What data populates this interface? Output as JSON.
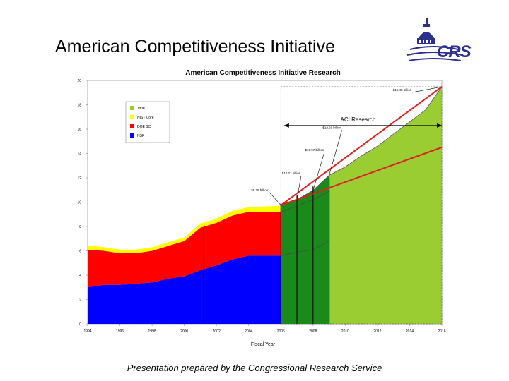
{
  "slide": {
    "title": "American Competitiveness Initiative",
    "footer": "Presentation prepared by the Congressional Research Service",
    "logo_text": "CRS"
  },
  "chart_data": {
    "type": "area",
    "title": "American Competitiveness Initiative Research",
    "xlabel": "Fiscal Year",
    "ylabel": "",
    "xlim": [
      1994,
      2016
    ],
    "ylim": [
      0,
      20
    ],
    "x_ticks": [
      1994,
      1996,
      1998,
      2000,
      2002,
      2004,
      2006,
      2008,
      2010,
      2012,
      2014,
      2016
    ],
    "x_tick_labels": [
      "1994",
      "1996",
      "1998",
      "2000",
      "2002",
      "2004",
      "2006",
      "2008",
      "2010",
      "2012",
      "2014",
      "2016"
    ],
    "y_ticks": [
      0,
      2,
      4,
      6,
      8,
      10,
      12,
      14,
      16,
      18,
      20
    ],
    "grid": false,
    "legend_position": "top-left",
    "legend": [
      {
        "label": "Total",
        "color": "#9acd32"
      },
      {
        "label": "NIST Core",
        "color": "#ffff00"
      },
      {
        "label": "DOE SC",
        "color": "#ff0000"
      },
      {
        "label": "NSF",
        "color": "#0000ff"
      }
    ],
    "series": [
      {
        "name": "NSF",
        "color": "#0000ff",
        "x": [
          1994,
          1995,
          1996,
          1997,
          1998,
          1999,
          2000,
          2001,
          2002,
          2003,
          2004,
          2005,
          2006,
          2007,
          2008,
          2009
        ],
        "values": [
          3.0,
          3.2,
          3.2,
          3.3,
          3.4,
          3.7,
          3.9,
          4.4,
          4.8,
          5.3,
          5.6,
          5.6,
          5.6,
          5.9,
          6.1,
          6.8
        ]
      },
      {
        "name": "DOE SC",
        "color": "#ff0000",
        "x": [
          1994,
          1995,
          1996,
          1997,
          1998,
          1999,
          2000,
          2001,
          2002,
          2003,
          2004,
          2005,
          2006
        ],
        "values": [
          3.1,
          2.8,
          2.6,
          2.5,
          2.6,
          2.7,
          2.9,
          3.5,
          3.5,
          3.6,
          3.6,
          3.6,
          3.6
        ]
      },
      {
        "name": "NIST Core",
        "color": "#ffff00",
        "x": [
          1994,
          1995,
          1996,
          1997,
          1998,
          1999,
          2000,
          2001,
          2002,
          2003,
          2004,
          2005,
          2006
        ],
        "values": [
          0.35,
          0.3,
          0.3,
          0.3,
          0.3,
          0.3,
          0.3,
          0.35,
          0.35,
          0.4,
          0.4,
          0.45,
          0.5
        ]
      },
      {
        "name": "Total",
        "color": "#9acd32",
        "x": [
          2006,
          2007,
          2008,
          2009,
          2010,
          2011,
          2012,
          2013,
          2014,
          2015,
          2016
        ],
        "values": [
          9.75,
          10.21,
          10.97,
          12.21,
          12.9,
          13.8,
          14.6,
          15.6,
          16.6,
          17.6,
          19.48
        ]
      }
    ],
    "annotations": [
      {
        "text": "$9.75 billion",
        "x": 2006,
        "y": 9.75
      },
      {
        "text": "$10.21 billion",
        "x": 2007,
        "y": 10.21
      },
      {
        "text": "$10.97 billion",
        "x": 2008,
        "y": 10.97
      },
      {
        "text": "$12.21 billion",
        "x": 2009,
        "y": 12.21
      },
      {
        "text": "$19.48 billion",
        "x": 2016,
        "y": 19.48
      },
      {
        "text": "ACI Research",
        "x": 2009.7,
        "y": 16.4
      }
    ],
    "trend_lines": [
      {
        "x": [
          2006,
          2016
        ],
        "y": [
          9.75,
          19.48
        ],
        "color": "#e02020"
      },
      {
        "x": [
          2006,
          2016
        ],
        "y": [
          9.75,
          14.5
        ],
        "color": "#e02020"
      }
    ]
  }
}
